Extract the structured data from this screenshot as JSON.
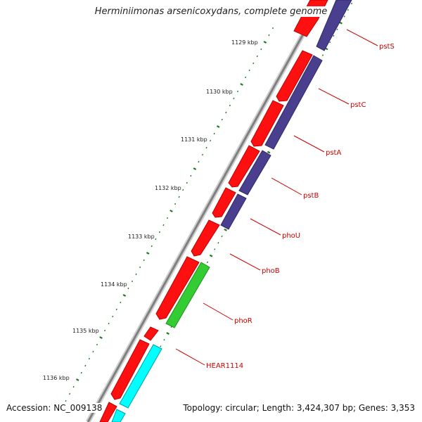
{
  "title": "Herminiimonas arsenicoxydans, complete genome",
  "accession": "Accession: NC_009138",
  "topology": "Topology: circular; Length: 3,424,307 bp; Genes: 3,353",
  "colors": {
    "backbone": "#888888",
    "forward_cds": "#ff0000",
    "reverse_cds": "#4a3f8f",
    "pho_cds": "#33cc33",
    "other_cds": "#00ffff",
    "ticks": "#1a7a1a",
    "label": "#cc0000"
  },
  "tick_labels": [
    "1129 kbp",
    "1130 kbp",
    "1131 kbp",
    "1132 kbp",
    "1133 kbp",
    "1134 kbp",
    "1135 kbp",
    "1136 kbp"
  ],
  "gene_labels": [
    "pstS",
    "pstC",
    "pstA",
    "pstB",
    "phoU",
    "phoB",
    "phoR",
    "HEAR1114"
  ]
}
